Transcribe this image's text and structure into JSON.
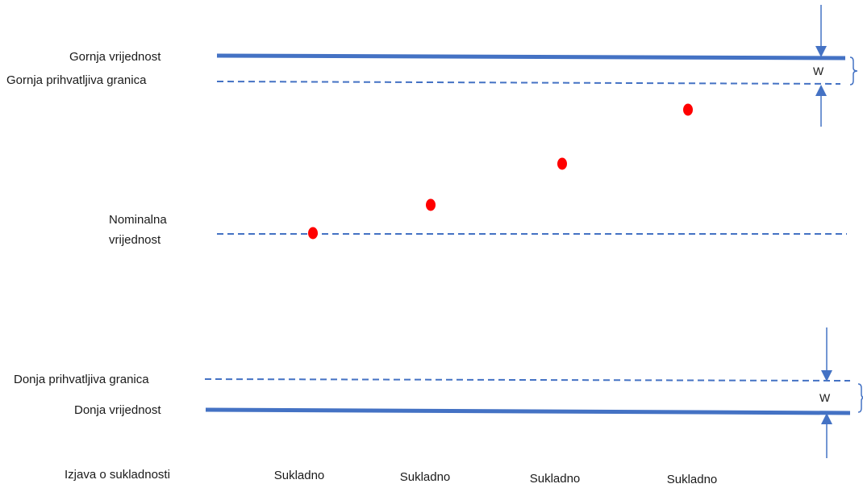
{
  "labels": {
    "upper_value": "Gornja vrijednost",
    "upper_acceptance": "Gornja prihvatljiva granica",
    "nominal_line1": "Nominalna",
    "nominal_line2": "vrijednost",
    "lower_acceptance": "Donja prihvatljiva granica",
    "lower_value": "Donja vrijednost",
    "conformity_statement": "Izjava o sukladnosti",
    "guard_band_upper": "W",
    "guard_band_lower": "W"
  },
  "statements": [
    "Sukladno",
    "Sukladno",
    "Sukladno",
    "Sukladno"
  ],
  "colors": {
    "line": "#4472C4",
    "point": "#FF0000",
    "text": "#1a1a1a"
  }
}
